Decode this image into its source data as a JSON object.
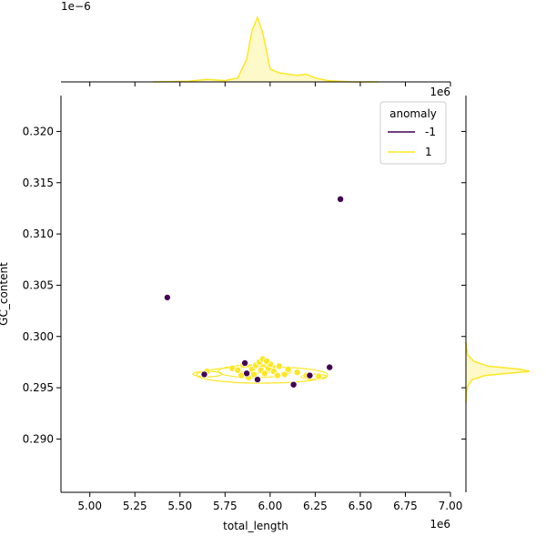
{
  "chart_data": {
    "type": "scatter",
    "xlabel": "total_length",
    "ylabel": "GC_content",
    "x_offset_label": "1e6",
    "top_y_offset_label": "1e−6",
    "top_x_offset_label": "1e6",
    "xlim": [
      4.84,
      7.0
    ],
    "ylim": [
      0.2848,
      0.3235
    ],
    "x_ticks": [
      5.0,
      5.25,
      5.5,
      5.75,
      6.0,
      6.25,
      6.5,
      6.75,
      7.0
    ],
    "x_tick_labels": [
      "5.00",
      "5.25",
      "5.50",
      "5.75",
      "6.00",
      "6.25",
      "6.50",
      "6.75",
      "7.00"
    ],
    "y_ticks": [
      0.29,
      0.295,
      0.3,
      0.305,
      0.31,
      0.315,
      0.32
    ],
    "y_tick_labels": [
      "0.290",
      "0.295",
      "0.300",
      "0.305",
      "0.310",
      "0.315",
      "0.320"
    ],
    "grid": false,
    "legend": {
      "title": "anomaly",
      "placement": "top-right",
      "entries": [
        {
          "label": "-1",
          "color": "#440154"
        },
        {
          "label": "1",
          "color": "#fde725"
        }
      ]
    },
    "series": [
      {
        "name": "-1",
        "color": "#440154",
        "points": [
          [
            5.43,
            0.3038
          ],
          [
            6.39,
            0.3134
          ],
          [
            5.635,
            0.2963
          ],
          [
            5.86,
            0.2974
          ],
          [
            5.87,
            0.2964
          ],
          [
            5.93,
            0.2958
          ],
          [
            6.13,
            0.2953
          ],
          [
            6.22,
            0.2962
          ],
          [
            6.33,
            0.297
          ]
        ]
      },
      {
        "name": "1",
        "color": "#fde725",
        "points": [
          [
            5.65,
            0.2966
          ],
          [
            5.79,
            0.2969
          ],
          [
            5.82,
            0.2967
          ],
          [
            5.85,
            0.2972
          ],
          [
            5.88,
            0.296
          ],
          [
            5.9,
            0.2968
          ],
          [
            5.92,
            0.2972
          ],
          [
            5.94,
            0.2975
          ],
          [
            5.96,
            0.2978
          ],
          [
            5.95,
            0.2967
          ],
          [
            5.97,
            0.2964
          ],
          [
            5.99,
            0.2969
          ],
          [
            6.02,
            0.2966
          ],
          [
            6.05,
            0.2971
          ],
          [
            6.08,
            0.2963
          ],
          [
            6.1,
            0.2968
          ],
          [
            6.15,
            0.2965
          ],
          [
            6.2,
            0.2962
          ],
          [
            6.27,
            0.2961
          ],
          [
            6.0,
            0.2973
          ],
          [
            5.91,
            0.2963
          ],
          [
            5.84,
            0.2962
          ],
          [
            5.98,
            0.2976
          ],
          [
            6.04,
            0.2962
          ]
        ]
      }
    ],
    "top_marginal_density": {
      "x": [
        5.35,
        5.55,
        5.65,
        5.75,
        5.82,
        5.87,
        5.9,
        5.93,
        5.96,
        6.0,
        6.05,
        6.1,
        6.15,
        6.2,
        6.25,
        6.32,
        6.45,
        6.6
      ],
      "y": [
        0.0,
        0.01,
        0.04,
        0.02,
        0.06,
        0.35,
        0.8,
        1.0,
        0.75,
        0.2,
        0.14,
        0.12,
        0.1,
        0.12,
        0.06,
        0.02,
        0.0,
        0.0
      ]
    },
    "right_marginal_density": {
      "y": [
        0.2935,
        0.2945,
        0.2952,
        0.2958,
        0.2962,
        0.2966,
        0.2968,
        0.2971,
        0.2976,
        0.2982,
        0.2988,
        0.2995
      ],
      "x": [
        0.0,
        0.01,
        0.03,
        0.1,
        0.3,
        1.0,
        0.85,
        0.35,
        0.12,
        0.03,
        0.01,
        0.0
      ]
    }
  }
}
